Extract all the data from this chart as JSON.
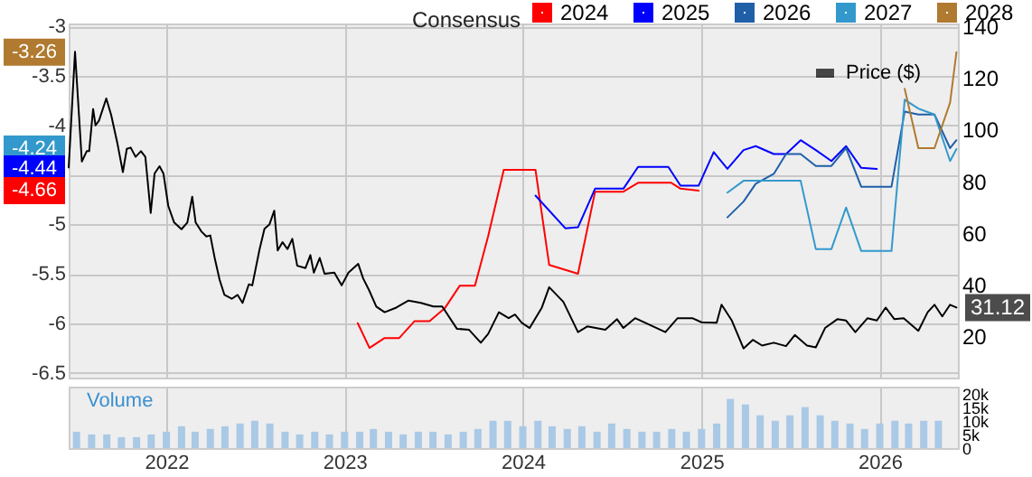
{
  "chart_data": [
    {
      "type": "line",
      "legend_title": "Consensus",
      "legend": "top right",
      "grid": true,
      "tick_labels": "y",
      "xlim": [
        "2021-06-15",
        "2026-06-10"
      ],
      "xticks": [
        "2022",
        "2023",
        "2024",
        "2025",
        "2026"
      ],
      "ylim": [
        -6.55,
        -2.97
      ],
      "yticks": [
        -3,
        -3.5,
        -4,
        {
          "value": -4.5,
          "label": null
        },
        -5,
        -5.5,
        -6,
        -6.5
      ],
      "annotations": [
        {
          "text": "-3.26",
          "y": -3.26
        },
        {
          "text": "-4.24",
          "y": -4.24
        },
        {
          "text": "-4.44",
          "y": -4.44
        },
        {
          "text": "-4.66",
          "y": -4.66
        }
      ],
      "y2lim": [
        4,
        141
      ],
      "y2ticks": [
        20,
        40,
        60,
        80,
        100,
        120,
        140
      ],
      "series": [
        {
          "name": "2024",
          "color": "#ff0000",
          "x": [
            "2023-01-28",
            "2023-02-21",
            "2023-03-24",
            "2023-04-23",
            "2023-05-24",
            "2023-06-24",
            "2023-07-25",
            "2023-08-25",
            "2023-09-25",
            "2023-10-22",
            "2023-11-23",
            "2024-01-27",
            "2024-02-24",
            "2024-04-23",
            "2024-05-28",
            "2024-07-25",
            "2024-08-24",
            "2024-10-31",
            "2024-11-19",
            "2024-12-26"
          ],
          "values": [
            -6.0,
            -6.25,
            -6.15,
            -6.15,
            -5.98,
            -5.98,
            -5.85,
            -5.62,
            -5.62,
            -5.12,
            -4.45,
            -4.45,
            -5.41,
            -5.5,
            -4.67,
            -4.67,
            -4.58,
            -4.58,
            -4.64,
            -4.66
          ]
        },
        {
          "name": "2025",
          "color": "#0000ff",
          "x": [
            "2024-01-27",
            "2024-03-28",
            "2024-04-23",
            "2024-05-28",
            "2024-07-25",
            "2024-08-24",
            "2024-10-25",
            "2024-11-19",
            "2024-12-26",
            "2025-01-26",
            "2025-02-23",
            "2025-03-28",
            "2025-04-22",
            "2025-05-29",
            "2025-06-23",
            "2025-07-23",
            "2025-08-23",
            "2025-09-24",
            "2025-10-24",
            "2025-11-24",
            "2025-12-26"
          ],
          "values": [
            -4.71,
            -5.04,
            -5.03,
            -4.64,
            -4.64,
            -4.42,
            -4.42,
            -4.61,
            -4.61,
            -4.27,
            -4.44,
            -4.25,
            -4.21,
            -4.29,
            -4.29,
            -4.15,
            -4.25,
            -4.36,
            -4.21,
            -4.43,
            -4.44
          ]
        },
        {
          "name": "2026",
          "color": "#1f5fa8",
          "x": [
            "2025-02-23",
            "2025-03-28",
            "2025-04-22",
            "2025-05-29",
            "2025-06-23",
            "2025-07-23",
            "2025-08-23",
            "2025-09-24",
            "2025-10-24",
            "2025-11-24",
            "2026-01-25",
            "2026-02-21",
            "2026-03-21",
            "2026-04-23",
            "2026-05-25",
            "2026-06-07"
          ],
          "values": [
            -4.93,
            -4.77,
            -4.59,
            -4.49,
            -4.29,
            -4.29,
            -4.41,
            -4.41,
            -4.23,
            -4.62,
            -4.62,
            -3.86,
            -3.89,
            -3.89,
            -4.23,
            -4.15
          ]
        },
        {
          "name": "2027",
          "color": "#3399cc",
          "x": [
            "2025-02-23",
            "2025-03-28",
            "2025-07-23",
            "2025-08-23",
            "2025-09-24",
            "2025-10-24",
            "2025-11-24",
            "2026-01-25",
            "2026-02-21",
            "2026-03-21",
            "2026-04-23",
            "2026-05-25",
            "2026-06-07"
          ],
          "values": [
            -4.68,
            -4.56,
            -4.56,
            -5.25,
            -5.25,
            -4.83,
            -5.27,
            -5.27,
            -3.74,
            -3.83,
            -3.89,
            -4.36,
            -4.24
          ]
        },
        {
          "name": "2028",
          "color": "#b07a30",
          "x": [
            "2026-02-21",
            "2026-03-21",
            "2026-04-23",
            "2026-05-25",
            "2026-06-07"
          ],
          "values": [
            -3.63,
            -4.23,
            -4.23,
            -3.77,
            -3.26
          ]
        },
        {
          "name": "Price ($)",
          "color": "#000000",
          "axis": "y2",
          "x": [
            "2021-06-15",
            "2021-06-28",
            "2021-07-12",
            "2021-07-22",
            "2021-07-27",
            "2021-08-04",
            "2021-08-09",
            "2021-08-16",
            "2021-08-31",
            "2021-09-10",
            "2021-09-23",
            "2021-10-04",
            "2021-10-12",
            "2021-10-20",
            "2021-10-30",
            "2021-11-10",
            "2021-11-19",
            "2021-11-30",
            "2021-12-08",
            "2021-12-18",
            "2021-12-26",
            "2022-01-05",
            "2022-01-17",
            "2022-02-01",
            "2022-02-13",
            "2022-02-23",
            "2022-03-02",
            "2022-03-14",
            "2022-03-24",
            "2022-04-01",
            "2022-04-10",
            "2022-04-20",
            "2022-04-30",
            "2022-05-15",
            "2022-05-27",
            "2022-06-06",
            "2022-06-19",
            "2022-06-26",
            "2022-07-11",
            "2022-07-21",
            "2022-07-31",
            "2022-08-10",
            "2022-08-17",
            "2022-08-27",
            "2022-09-06",
            "2022-09-16",
            "2022-09-26",
            "2022-10-13",
            "2022-10-23",
            "2022-10-30",
            "2022-11-11",
            "2022-11-21",
            "2022-12-11",
            "2022-12-26",
            "2023-01-09",
            "2023-01-29",
            "2023-02-08",
            "2023-02-20",
            "2023-03-07",
            "2023-03-24",
            "2023-04-17",
            "2023-05-12",
            "2023-06-06",
            "2023-07-02",
            "2023-07-20",
            "2023-08-19",
            "2023-09-13",
            "2023-10-07",
            "2023-10-22",
            "2023-11-13",
            "2023-12-03",
            "2023-12-16",
            "2023-12-30",
            "2024-01-15",
            "2024-02-09",
            "2024-02-24",
            "2024-03-24",
            "2024-04-23",
            "2024-05-12",
            "2024-06-18",
            "2024-07-12",
            "2024-07-25",
            "2024-08-18",
            "2024-09-18",
            "2024-10-19",
            "2024-11-13",
            "2024-12-13",
            "2025-01-01",
            "2025-02-01",
            "2025-02-11",
            "2025-03-04",
            "2025-03-28",
            "2025-04-16",
            "2025-05-05",
            "2025-05-29",
            "2025-06-23",
            "2025-07-11",
            "2025-08-05",
            "2025-08-23",
            "2025-09-11",
            "2025-10-06",
            "2025-10-24",
            "2025-11-12",
            "2025-12-07",
            "2025-12-26",
            "2026-01-13",
            "2026-01-31",
            "2026-02-19",
            "2026-03-21",
            "2026-04-09",
            "2026-04-23",
            "2026-05-09",
            "2026-05-25",
            "2026-06-07"
          ],
          "values": [
            85.3,
            130.1,
            87.6,
            91.6,
            91.6,
            107.9,
            101.6,
            103.4,
            112,
            105.6,
            94.4,
            83.5,
            92.5,
            93,
            89.4,
            91.6,
            89.4,
            67.7,
            83,
            85.8,
            83,
            70.4,
            64,
            61.4,
            64,
            74,
            64,
            60.5,
            58.6,
            59,
            50.3,
            41.9,
            36,
            34.5,
            36,
            32.9,
            40.1,
            39.7,
            53.7,
            61.6,
            63.2,
            68.6,
            53.2,
            56.4,
            53.7,
            57.7,
            47.3,
            46.4,
            51.4,
            44.6,
            50.3,
            44.2,
            44.6,
            39.7,
            44.6,
            48,
            42.4,
            37.9,
            31.5,
            29.3,
            31.1,
            33.8,
            32.9,
            31.5,
            31.5,
            22.9,
            22.5,
            17.5,
            20.9,
            29.3,
            27,
            28.4,
            25.2,
            23.2,
            31.1,
            39,
            33.3,
            21.6,
            23.8,
            22.5,
            26.6,
            23.2,
            27,
            24.3,
            21.6,
            27,
            27,
            25.4,
            25.2,
            32.2,
            26.1,
            15.3,
            18.6,
            16.4,
            17.5,
            16.2,
            20.5,
            16.4,
            15.7,
            23.2,
            26.6,
            26.1,
            21.6,
            27,
            26.1,
            31.1,
            26.6,
            27,
            22.1,
            29.3,
            32.2,
            27.7,
            32.2,
            31.12
          ],
          "value_labels": [
            null,
            null,
            null,
            null,
            null,
            null,
            null,
            null,
            null,
            null,
            null,
            null,
            null,
            null,
            null,
            null,
            null,
            null,
            null,
            null,
            null,
            null,
            null,
            null,
            null,
            null,
            null,
            null,
            null,
            null,
            null,
            null,
            null,
            null,
            null,
            null,
            null,
            null,
            null,
            null,
            null,
            null,
            null,
            null,
            null,
            null,
            null,
            null,
            null,
            null,
            null,
            null,
            null,
            null,
            null,
            null,
            null,
            null,
            null,
            null,
            null,
            null,
            null,
            null,
            null,
            null,
            null,
            null,
            null,
            null,
            null,
            null,
            null,
            null,
            null,
            null,
            null,
            null,
            null,
            null,
            null,
            null,
            null,
            null,
            null,
            null,
            null,
            null,
            null,
            null,
            null,
            null,
            null,
            null,
            null,
            null,
            null,
            null,
            null,
            null,
            null,
            null,
            null,
            null,
            null,
            null,
            null,
            null,
            null,
            null,
            null,
            null,
            null,
            "31.12"
          ]
        }
      ]
    },
    {
      "type": "bar",
      "title": "Volume",
      "color": "#a9c9e6",
      "grid": "x",
      "xlim": [
        "2021-06-15",
        "2026-06-10"
      ],
      "xticks": [
        "2022",
        "2023",
        "2024",
        "2025",
        "2026"
      ],
      "ylim": [
        0,
        22500
      ],
      "yticks": [
        0,
        {
          "value": 5000,
          "label": "5k"
        },
        {
          "value": 10000,
          "label": "10k"
        },
        {
          "value": 15000,
          "label": "15k"
        },
        {
          "value": 20000,
          "label": "20k"
        }
      ],
      "x": [
        "2021-07-01",
        "2021-08-01",
        "2021-09-01",
        "2021-10-01",
        "2021-11-01",
        "2021-12-01",
        "2022-01-01",
        "2022-02-01",
        "2022-03-01",
        "2022-04-01",
        "2022-05-01",
        "2022-06-01",
        "2022-07-01",
        "2022-08-01",
        "2022-09-01",
        "2022-10-01",
        "2022-11-01",
        "2022-12-01",
        "2023-01-01",
        "2023-02-01",
        "2023-03-01",
        "2023-04-01",
        "2023-05-01",
        "2023-06-01",
        "2023-07-01",
        "2023-08-01",
        "2023-09-01",
        "2023-10-01",
        "2023-11-01",
        "2023-12-01",
        "2024-01-01",
        "2024-02-01",
        "2024-03-01",
        "2024-04-01",
        "2024-05-01",
        "2024-06-01",
        "2024-07-01",
        "2024-08-01",
        "2024-09-01",
        "2024-10-01",
        "2024-11-01",
        "2024-12-01",
        "2025-01-01",
        "2025-02-01",
        "2025-03-01",
        "2025-04-01",
        "2025-05-01",
        "2025-06-01",
        "2025-07-01",
        "2025-08-01",
        "2025-09-01",
        "2025-10-01",
        "2025-11-01",
        "2025-12-01",
        "2026-01-01",
        "2026-02-01",
        "2026-03-01",
        "2026-04-01",
        "2026-05-01"
      ],
      "values": [
        6000,
        5000,
        5000,
        4000,
        4000,
        5000,
        6000,
        8000,
        6000,
        7000,
        8000,
        9000,
        10000,
        9000,
        6000,
        5000,
        6000,
        5000,
        6000,
        6000,
        7000,
        6000,
        5000,
        6000,
        6000,
        5000,
        6000,
        7000,
        10000,
        10000,
        8000,
        10000,
        8000,
        7000,
        8000,
        6000,
        9000,
        7000,
        6000,
        6000,
        7000,
        6000,
        7000,
        9000,
        18000,
        16000,
        12000,
        10000,
        12000,
        15000,
        12000,
        10000,
        9000,
        7000,
        9000,
        10000,
        9000,
        10000,
        10000
      ]
    }
  ]
}
